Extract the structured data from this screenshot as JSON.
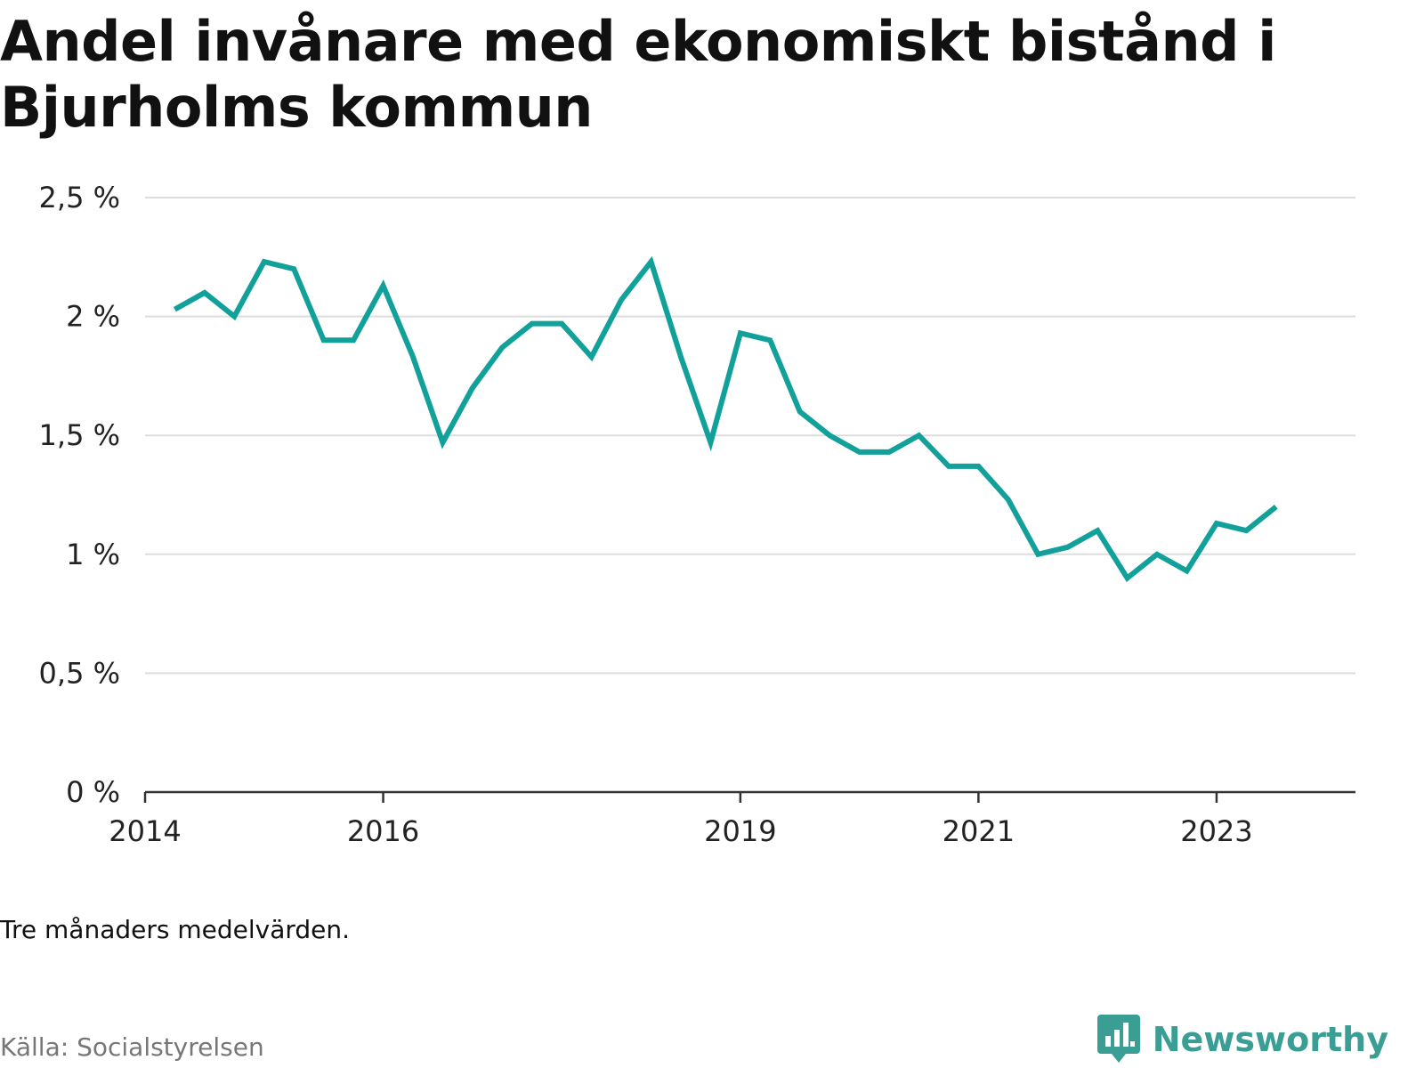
{
  "title": "Andel invånare med ekonomiskt bistånd i Bjurholms kommun",
  "note": "Tre månaders medelvärden.",
  "source": "Källa: Socialstyrelsen",
  "brand": {
    "name": "Newsworthy",
    "icon": "newsworthy-logo-icon",
    "color": "#3a9e94"
  },
  "colors": {
    "line": "#12a19a",
    "grid": "#dddddd",
    "axis": "#333333"
  },
  "chart_data": {
    "type": "line",
    "title": "",
    "xlabel": "",
    "ylabel": "",
    "ylim": [
      0,
      2.5
    ],
    "xlim": [
      "2014-01",
      "2024-03"
    ],
    "grid": true,
    "y_ticks": [
      {
        "value": 0,
        "label": "0 %"
      },
      {
        "value": 0.5,
        "label": "0,5 %"
      },
      {
        "value": 1,
        "label": "1 %"
      },
      {
        "value": 1.5,
        "label": "1,5 %"
      },
      {
        "value": 2,
        "label": "2 %"
      },
      {
        "value": 2.5,
        "label": "2,5 %"
      }
    ],
    "x_ticks": [
      {
        "value": "2014-01",
        "label": "2014"
      },
      {
        "value": "2016-01",
        "label": "2016"
      },
      {
        "value": "2019-01",
        "label": "2019"
      },
      {
        "value": "2021-01",
        "label": "2021"
      },
      {
        "value": "2023-01",
        "label": "2023"
      }
    ],
    "series": [
      {
        "x": [
          "2014-04",
          "2014-07",
          "2014-10",
          "2015-01",
          "2015-04",
          "2015-07",
          "2015-10",
          "2016-01",
          "2016-04",
          "2016-07",
          "2016-10",
          "2017-01",
          "2017-04",
          "2017-07",
          "2017-10",
          "2018-01",
          "2018-04",
          "2018-07",
          "2018-10",
          "2019-01",
          "2019-04",
          "2019-07",
          "2019-10",
          "2020-01",
          "2020-04",
          "2020-07",
          "2020-10",
          "2021-01",
          "2021-04",
          "2021-07",
          "2021-10",
          "2022-01",
          "2022-04",
          "2022-07",
          "2022-10",
          "2023-01",
          "2023-04",
          "2023-07"
        ],
        "values": [
          2.03,
          2.1,
          2.0,
          2.23,
          2.2,
          1.9,
          1.9,
          2.13,
          1.83,
          1.47,
          1.7,
          1.87,
          1.97,
          1.97,
          1.83,
          2.07,
          2.23,
          1.83,
          1.47,
          1.93,
          1.9,
          1.6,
          1.5,
          1.43,
          1.43,
          1.5,
          1.37,
          1.37,
          1.23,
          1.0,
          1.03,
          1.1,
          0.9,
          1.0,
          0.93,
          1.13,
          1.1,
          1.2
        ]
      }
    ]
  }
}
